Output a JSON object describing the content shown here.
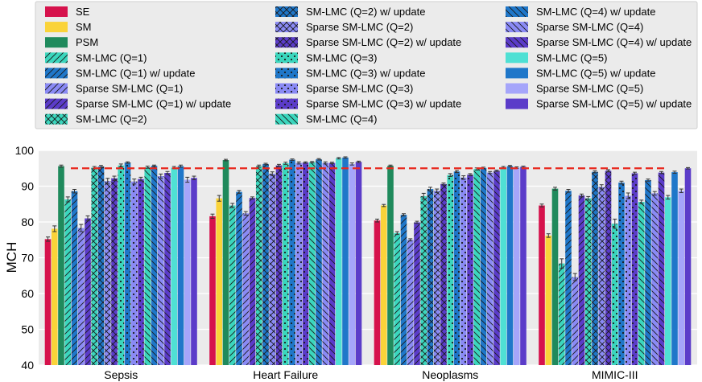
{
  "chart_data": {
    "type": "bar",
    "title": "",
    "xlabel": "",
    "ylabel": "MCH",
    "ylim": [
      40,
      100
    ],
    "yticks": [
      40,
      50,
      60,
      70,
      80,
      90,
      100
    ],
    "grid": true,
    "legend_position": "top",
    "reference_line": {
      "value": 95,
      "style": "dashed",
      "color": "#e8281e"
    },
    "categories": [
      "Sepsis",
      "Heart Failure",
      "Neoplasms",
      "MIMIC-III"
    ],
    "series": [
      {
        "name": "SE",
        "color": "#d6124c",
        "pattern": "none",
        "values": [
          75.2,
          81.6,
          80.4,
          84.6
        ],
        "errors": [
          0.6,
          0.6,
          0.4,
          0.4
        ]
      },
      {
        "name": "SM",
        "color": "#fad339",
        "pattern": "none",
        "values": [
          78.1,
          86.6,
          84.6,
          76.2
        ],
        "errors": [
          0.8,
          0.8,
          0.3,
          0.5
        ]
      },
      {
        "name": "PSM",
        "color": "#1f8a5c",
        "pattern": "none",
        "values": [
          95.6,
          97.3,
          95.7,
          89.3
        ],
        "errors": [
          0.3,
          0.2,
          0.2,
          0.4
        ]
      },
      {
        "name": "SM-LMC (Q=1)",
        "color": "#3bd6bd",
        "pattern": "diag",
        "values": [
          86.3,
          84.6,
          76.9,
          68.4
        ],
        "errors": [
          0.7,
          0.6,
          0.4,
          1.3
        ]
      },
      {
        "name": "SM-LMC (Q=1) w/ update",
        "color": "#1f77c9",
        "pattern": "diag",
        "values": [
          88.6,
          88.4,
          82.0,
          88.7
        ],
        "errors": [
          0.5,
          0.4,
          0.3,
          0.4
        ]
      },
      {
        "name": "Sparse SM-LMC (Q=1)",
        "color": "#8a8af5",
        "pattern": "diag",
        "values": [
          78.3,
          82.4,
          75.0,
          64.6
        ],
        "errors": [
          1.0,
          0.5,
          0.3,
          1.0
        ]
      },
      {
        "name": "Sparse SM-LMC (Q=1) w/ update",
        "color": "#5b3cc9",
        "pattern": "diag",
        "values": [
          81.0,
          86.7,
          79.9,
          87.4
        ],
        "errors": [
          0.7,
          0.3,
          0.3,
          0.4
        ]
      },
      {
        "name": "SM-LMC (Q=2)",
        "color": "#3bd6bd",
        "pattern": "cross",
        "values": [
          95.2,
          95.6,
          87.2,
          86.6
        ],
        "errors": [
          0.3,
          0.3,
          0.8,
          0.5
        ]
      },
      {
        "name": "SM-LMC (Q=2) w/ update",
        "color": "#1f77c9",
        "pattern": "cross",
        "values": [
          95.5,
          96.2,
          89.2,
          94.0
        ],
        "errors": [
          0.3,
          0.2,
          0.5,
          0.3
        ]
      },
      {
        "name": "Sparse SM-LMC (Q=2)",
        "color": "#8a8af5",
        "pattern": "cross",
        "values": [
          91.4,
          93.5,
          88.7,
          89.8
        ],
        "errors": [
          0.8,
          0.5,
          0.5,
          0.6
        ]
      },
      {
        "name": "Sparse SM-LMC (Q=2) w/ update",
        "color": "#5b3cc9",
        "pattern": "cross",
        "values": [
          92.2,
          95.8,
          90.6,
          94.3
        ],
        "errors": [
          0.6,
          0.3,
          0.3,
          0.3
        ]
      },
      {
        "name": "SM-LMC (Q=3)",
        "color": "#3bd6bd",
        "pattern": "dots",
        "values": [
          95.8,
          96.4,
          93.1,
          79.5
        ],
        "errors": [
          0.4,
          0.3,
          0.4,
          1.3
        ]
      },
      {
        "name": "SM-LMC (Q=3) w/ update",
        "color": "#1f77c9",
        "pattern": "dots",
        "values": [
          96.6,
          97.4,
          94.1,
          91.0
        ],
        "errors": [
          0.2,
          0.2,
          0.3,
          0.4
        ]
      },
      {
        "name": "Sparse SM-LMC (Q=3)",
        "color": "#8a8af5",
        "pattern": "dots",
        "values": [
          91.3,
          96.5,
          92.4,
          87.3
        ],
        "errors": [
          0.7,
          0.3,
          0.5,
          0.8
        ]
      },
      {
        "name": "Sparse SM-LMC (Q=3) w/ update",
        "color": "#5b3cc9",
        "pattern": "dots",
        "values": [
          92.0,
          96.6,
          93.2,
          93.6
        ],
        "errors": [
          0.5,
          0.2,
          0.3,
          0.3
        ]
      },
      {
        "name": "SM-LMC (Q=4)",
        "color": "#3bd6bd",
        "pattern": "rdiag",
        "values": [
          95.3,
          96.7,
          94.8,
          85.6
        ],
        "errors": [
          0.3,
          0.2,
          0.3,
          0.5
        ]
      },
      {
        "name": "SM-LMC (Q=4) w/ update",
        "color": "#1f77c9",
        "pattern": "rdiag",
        "values": [
          95.7,
          97.5,
          95.1,
          91.7
        ],
        "errors": [
          0.2,
          0.2,
          0.2,
          0.3
        ]
      },
      {
        "name": "Sparse SM-LMC (Q=4)",
        "color": "#8a8af5",
        "pattern": "rdiag",
        "values": [
          92.8,
          96.5,
          93.8,
          88.0
        ],
        "errors": [
          0.6,
          0.3,
          0.3,
          0.5
        ]
      },
      {
        "name": "Sparse SM-LMC (Q=4) w/ update",
        "color": "#5b3cc9",
        "pattern": "rdiag",
        "values": [
          93.7,
          96.5,
          94.3,
          93.8
        ],
        "errors": [
          0.4,
          0.2,
          0.2,
          0.3
        ]
      },
      {
        "name": "SM-LMC (Q=5)",
        "color": "#4fe0d4",
        "pattern": "none",
        "values": [
          95.2,
          97.8,
          95.3,
          86.9
        ],
        "errors": [
          0.3,
          0.2,
          0.2,
          0.5
        ]
      },
      {
        "name": "SM-LMC (Q=5) w/ update",
        "color": "#1f77c9",
        "pattern": "none",
        "values": [
          95.6,
          98.0,
          95.6,
          93.9
        ],
        "errors": [
          0.3,
          0.2,
          0.2,
          0.3
        ]
      },
      {
        "name": "Sparse SM-LMC (Q=5)",
        "color": "#a5a5fa",
        "pattern": "none",
        "values": [
          91.8,
          96.2,
          95.2,
          88.7
        ],
        "errors": [
          0.7,
          0.3,
          0.2,
          0.5
        ]
      },
      {
        "name": "Sparse SM-LMC (Q=5) w/ update",
        "color": "#5b3cc9",
        "pattern": "none",
        "values": [
          92.3,
          96.8,
          95.4,
          95.0
        ],
        "errors": [
          0.5,
          0.2,
          0.2,
          0.2
        ]
      }
    ]
  }
}
